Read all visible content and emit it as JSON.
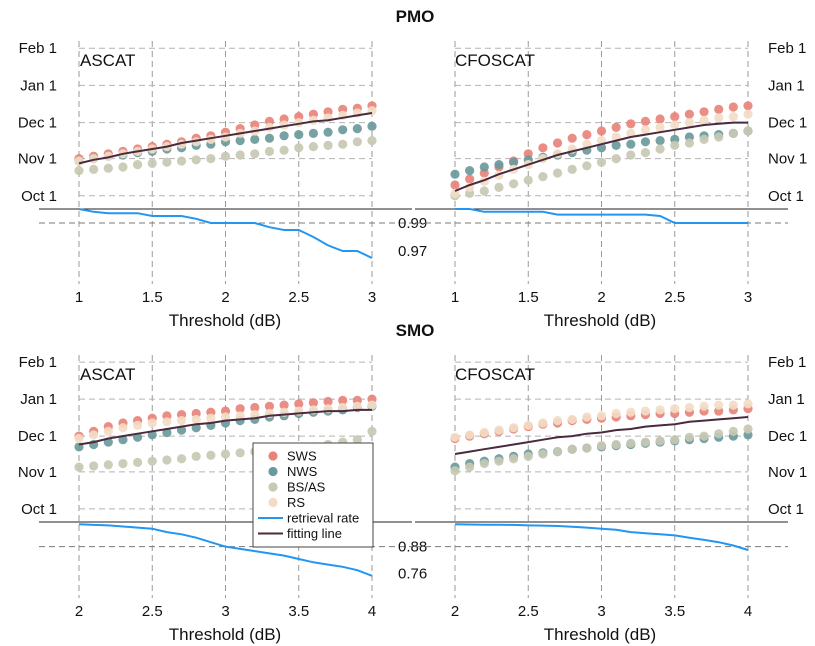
{
  "figure": {
    "sections": [
      {
        "title": "PMO",
        "panels": [
          {
            "name": "ASCAT",
            "xlabel": "Threshold (dB)",
            "x_ticks": [
              "1",
              "1.5",
              "2",
              "2.5",
              "3"
            ],
            "y_ticks": [
              "Oct 1",
              "Nov 1",
              "Dec 1",
              "Jan 1",
              "Feb 1"
            ],
            "rate_ticks": [
              "0.97",
              "0.99"
            ]
          },
          {
            "name": "CFOSCAT",
            "xlabel": "Threshold (dB)",
            "x_ticks": [
              "1",
              "1.5",
              "2",
              "2.5",
              "3"
            ],
            "y_ticks": [
              "Oct 1",
              "Nov 1",
              "Dec 1",
              "Jan 1",
              "Feb 1"
            ],
            "rate_ticks": [
              "0.97",
              "0.99"
            ]
          }
        ]
      },
      {
        "title": "SMO",
        "panels": [
          {
            "name": "ASCAT",
            "xlabel": "Threshold (dB)",
            "x_ticks": [
              "2",
              "2.5",
              "3",
              "3.5",
              "4"
            ],
            "y_ticks": [
              "Oct 1",
              "Nov 1",
              "Dec 1",
              "Jan 1",
              "Feb 1"
            ],
            "rate_ticks": [
              "0.76",
              "0.88"
            ]
          },
          {
            "name": "CFOSCAT",
            "xlabel": "Threshold (dB)",
            "x_ticks": [
              "2",
              "2.5",
              "3",
              "3.5",
              "4"
            ],
            "y_ticks": [
              "Oct 1",
              "Nov 1",
              "Dec 1",
              "Jan 1",
              "Feb 1"
            ],
            "rate_ticks": [
              "0.76",
              "0.88"
            ]
          }
        ]
      }
    ],
    "legend": [
      {
        "label": "SWS",
        "kind": "marker",
        "color": "#e8837a"
      },
      {
        "label": "NWS",
        "kind": "marker",
        "color": "#6a9a9c"
      },
      {
        "label": "BS/AS",
        "kind": "marker",
        "color": "#c7c9b3"
      },
      {
        "label": "RS",
        "kind": "marker",
        "color": "#f3dcc6"
      },
      {
        "label": "retrieval rate",
        "kind": "line",
        "color": "#2196f3"
      },
      {
        "label": "fitting line",
        "kind": "line",
        "color": "#4a2a3e"
      }
    ]
  },
  "chart_data": [
    {
      "type": "scatter",
      "section": "PMO",
      "panel": "ASCAT",
      "x_axis": "Threshold (dB)",
      "x": [
        1.0,
        1.1,
        1.2,
        1.3,
        1.4,
        1.5,
        1.6,
        1.7,
        1.8,
        1.9,
        2.0,
        2.1,
        2.2,
        2.3,
        2.4,
        2.5,
        2.6,
        2.7,
        2.8,
        2.9,
        3.0
      ],
      "y_unit": "date (month day)",
      "y_ticks": [
        "Oct 1",
        "Nov 1",
        "Dec 1",
        "Jan 1",
        "Feb 1"
      ],
      "ylim": [
        "Sep 20",
        "Feb 7"
      ],
      "series": [
        {
          "name": "SWS",
          "values": [
            "Nov 1",
            "Nov 3",
            "Nov 5",
            "Nov 7",
            "Nov 9",
            "Nov 11",
            "Nov 13",
            "Nov 15",
            "Nov 18",
            "Nov 20",
            "Nov 23",
            "Nov 26",
            "Nov 29",
            "Dec 2",
            "Dec 4",
            "Dec 6",
            "Dec 8",
            "Dec 10",
            "Dec 12",
            "Dec 13",
            "Dec 15"
          ]
        },
        {
          "name": "NWS",
          "values": [
            "Oct 30",
            "Nov 1",
            "Nov 3",
            "Nov 4",
            "Nov 6",
            "Nov 7",
            "Nov 9",
            "Nov 10",
            "Nov 12",
            "Nov 13",
            "Nov 15",
            "Nov 16",
            "Nov 17",
            "Nov 18",
            "Nov 20",
            "Nov 21",
            "Nov 22",
            "Nov 23",
            "Nov 25",
            "Nov 26",
            "Nov 28"
          ]
        },
        {
          "name": "BS/AS",
          "values": [
            "Oct 22",
            "Oct 23",
            "Oct 24",
            "Oct 25",
            "Oct 27",
            "Oct 28",
            "Oct 29",
            "Oct 30",
            "Oct 31",
            "Nov 1",
            "Nov 3",
            "Nov 4",
            "Nov 5",
            "Nov 7",
            "Nov 8",
            "Nov 10",
            "Nov 11",
            "Nov 12",
            "Nov 13",
            "Nov 15",
            "Nov 16"
          ]
        },
        {
          "name": "RS",
          "values": [
            "Oct 30",
            "Nov 1",
            "Nov 3",
            "Nov 5",
            "Nov 7",
            "Nov 9",
            "Nov 11",
            "Nov 13",
            "Nov 15",
            "Nov 17",
            "Nov 19",
            "Nov 22",
            "Nov 24",
            "Nov 27",
            "Nov 29",
            "Dec 1",
            "Dec 3",
            "Dec 5",
            "Dec 7",
            "Dec 9",
            "Dec 11"
          ]
        },
        {
          "name": "fitting line",
          "values": [
            "Oct 28",
            "Oct 31",
            "Nov 2",
            "Nov 5",
            "Nov 7",
            "Nov 9",
            "Nov 11",
            "Nov 14",
            "Nov 16",
            "Nov 18",
            "Nov 20",
            "Nov 22",
            "Nov 24",
            "Nov 26",
            "Nov 28",
            "Nov 30",
            "Dec 2",
            "Dec 3",
            "Dec 5",
            "Dec 7",
            "Dec 9"
          ]
        }
      ],
      "retrieval_rate": {
        "ylim": [
          0.955,
          1.0
        ],
        "y_ticks": [
          0.97,
          0.99
        ],
        "values": [
          1.0,
          0.998,
          0.997,
          0.997,
          0.997,
          0.995,
          0.995,
          0.995,
          0.993,
          0.99,
          0.99,
          0.99,
          0.99,
          0.987,
          0.985,
          0.985,
          0.98,
          0.974,
          0.97,
          0.97,
          0.965
        ]
      }
    },
    {
      "type": "scatter",
      "section": "PMO",
      "panel": "CFOSCAT",
      "x_axis": "Threshold (dB)",
      "x": [
        1.0,
        1.1,
        1.2,
        1.3,
        1.4,
        1.5,
        1.6,
        1.7,
        1.8,
        1.9,
        2.0,
        2.1,
        2.2,
        2.3,
        2.4,
        2.5,
        2.6,
        2.7,
        2.8,
        2.9,
        3.0
      ],
      "y_unit": "date (month day)",
      "y_ticks": [
        "Oct 1",
        "Nov 1",
        "Dec 1",
        "Jan 1",
        "Feb 1"
      ],
      "ylim": [
        "Sep 20",
        "Feb 7"
      ],
      "series": [
        {
          "name": "SWS",
          "values": [
            "Oct 10",
            "Oct 15",
            "Oct 20",
            "Oct 25",
            "Oct 30",
            "Nov 5",
            "Nov 10",
            "Nov 14",
            "Nov 18",
            "Nov 21",
            "Nov 24",
            "Nov 27",
            "Nov 30",
            "Dec 2",
            "Dec 4",
            "Dec 6",
            "Dec 8",
            "Dec 10",
            "Dec 12",
            "Dec 14",
            "Dec 15"
          ]
        },
        {
          "name": "NWS",
          "values": [
            "Oct 19",
            "Oct 22",
            "Oct 25",
            "Oct 27",
            "Oct 29",
            "Oct 31",
            "Nov 2",
            "Nov 4",
            "Nov 6",
            "Nov 8",
            "Nov 10",
            "Nov 12",
            "Nov 13",
            "Nov 15",
            "Nov 16",
            "Nov 17",
            "Nov 19",
            "Nov 20",
            "Nov 21",
            "Nov 22",
            "Nov 24"
          ]
        },
        {
          "name": "BS/AS",
          "values": [
            "Oct 1",
            "Oct 3",
            "Oct 5",
            "Oct 8",
            "Oct 11",
            "Oct 14",
            "Oct 17",
            "Oct 20",
            "Oct 23",
            "Oct 26",
            "Oct 29",
            "Nov 1",
            "Nov 4",
            "Nov 6",
            "Nov 9",
            "Nov 12",
            "Nov 14",
            "Nov 17",
            "Nov 19",
            "Nov 22",
            "Nov 24"
          ]
        },
        {
          "name": "RS",
          "values": [
            "Oct 3",
            "Oct 8",
            "Oct 13",
            "Oct 18",
            "Oct 23",
            "Oct 27",
            "Nov 1",
            "Nov 5",
            "Nov 9",
            "Nov 13",
            "Nov 16",
            "Nov 19",
            "Nov 22",
            "Nov 25",
            "Nov 27",
            "Nov 29",
            "Dec 1",
            "Dec 3",
            "Dec 5",
            "Dec 6",
            "Dec 8"
          ]
        },
        {
          "name": "fitting line",
          "values": [
            "Oct 5",
            "Oct 10",
            "Oct 14",
            "Oct 19",
            "Oct 23",
            "Oct 27",
            "Oct 31",
            "Nov 4",
            "Nov 7",
            "Nov 10",
            "Nov 13",
            "Nov 16",
            "Nov 19",
            "Nov 21",
            "Nov 23",
            "Nov 25",
            "Nov 27",
            "Nov 29",
            "Nov 30",
            "Dec 1",
            "Dec 1"
          ]
        }
      ],
      "retrieval_rate": {
        "ylim": [
          0.955,
          1.0
        ],
        "y_ticks": [
          0.97,
          0.99
        ],
        "values": [
          1.0,
          1.0,
          0.998,
          0.998,
          0.998,
          0.998,
          0.998,
          0.996,
          0.996,
          0.996,
          0.996,
          0.996,
          0.996,
          0.996,
          0.995,
          0.99,
          0.99,
          0.99,
          0.99,
          0.99,
          0.99
        ]
      }
    },
    {
      "type": "scatter",
      "section": "SMO",
      "panel": "ASCAT",
      "x_axis": "Threshold (dB)",
      "x": [
        2.0,
        2.1,
        2.2,
        2.3,
        2.4,
        2.5,
        2.6,
        2.7,
        2.8,
        2.9,
        3.0,
        3.1,
        3.2,
        3.3,
        3.4,
        3.5,
        3.6,
        3.7,
        3.8,
        3.9,
        4.0
      ],
      "y_unit": "date (month day)",
      "y_ticks": [
        "Oct 1",
        "Nov 1",
        "Dec 1",
        "Jan 1",
        "Feb 1"
      ],
      "ylim": [
        "Sep 20",
        "Feb 7"
      ],
      "series": [
        {
          "name": "SWS",
          "values": [
            "Dec 1",
            "Dec 5",
            "Dec 9",
            "Dec 12",
            "Dec 14",
            "Dec 16",
            "Dec 18",
            "Dec 19",
            "Dec 20",
            "Dec 21",
            "Dec 22",
            "Dec 24",
            "Dec 25",
            "Dec 26",
            "Dec 27",
            "Dec 28",
            "Dec 29",
            "Dec 30",
            "Dec 31",
            "Dec 31",
            "Jan 1"
          ]
        },
        {
          "name": "NWS",
          "values": [
            "Nov 22",
            "Nov 24",
            "Nov 26",
            "Nov 28",
            "Nov 30",
            "Dec 2",
            "Dec 4",
            "Dec 6",
            "Dec 8",
            "Dec 10",
            "Dec 12",
            "Dec 14",
            "Dec 15",
            "Dec 17",
            "Dec 18",
            "Dec 20",
            "Dec 21",
            "Dec 22",
            "Dec 23",
            "Dec 25",
            "Dec 26"
          ]
        },
        {
          "name": "BS/AS",
          "values": [
            "Nov 5",
            "Nov 6",
            "Nov 7",
            "Nov 8",
            "Nov 9",
            "Nov 10",
            "Nov 11",
            "Nov 12",
            "Nov 14",
            "Nov 15",
            "Nov 16",
            "Nov 17",
            "Nov 18",
            "Nov 19",
            "Nov 20",
            "Nov 21",
            "Nov 22",
            "Nov 24",
            "Nov 26",
            "Nov 28",
            "Dec 5"
          ]
        },
        {
          "name": "RS",
          "values": [
            "Nov 29",
            "Dec 2",
            "Dec 5",
            "Dec 8",
            "Dec 10",
            "Dec 12",
            "Dec 13",
            "Dec 14",
            "Dec 15",
            "Dec 16",
            "Dec 17",
            "Dec 18",
            "Dec 19",
            "Dec 20",
            "Dec 21",
            "Dec 22",
            "Dec 23",
            "Dec 24",
            "Dec 25",
            "Dec 26",
            "Dec 27"
          ]
        },
        {
          "name": "fitting line",
          "values": [
            "Nov 24",
            "Nov 26",
            "Nov 29",
            "Dec 1",
            "Dec 3",
            "Dec 5",
            "Dec 7",
            "Dec 9",
            "Dec 11",
            "Dec 12",
            "Dec 14",
            "Dec 15",
            "Dec 16",
            "Dec 18",
            "Dec 19",
            "Dec 20",
            "Dec 21",
            "Dec 22",
            "Dec 22",
            "Dec 23",
            "Dec 23"
          ]
        }
      ],
      "retrieval_rate": {
        "ylim": [
          0.7,
          0.99
        ],
        "y_ticks": [
          0.76,
          0.88
        ],
        "values": [
          0.98,
          0.977,
          0.975,
          0.97,
          0.965,
          0.96,
          0.945,
          0.935,
          0.92,
          0.9,
          0.88,
          0.87,
          0.86,
          0.85,
          0.84,
          0.825,
          0.81,
          0.8,
          0.79,
          0.775,
          0.75
        ]
      }
    },
    {
      "type": "scatter",
      "section": "SMO",
      "panel": "CFOSCAT",
      "x_axis": "Threshold (dB)",
      "x": [
        2.0,
        2.1,
        2.2,
        2.3,
        2.4,
        2.5,
        2.6,
        2.7,
        2.8,
        2.9,
        3.0,
        3.1,
        3.2,
        3.3,
        3.4,
        3.5,
        3.6,
        3.7,
        3.8,
        3.9,
        4.0
      ],
      "y_unit": "date (month day)",
      "y_ticks": [
        "Oct 1",
        "Nov 1",
        "Dec 1",
        "Jan 1",
        "Feb 1"
      ],
      "ylim": [
        "Sep 20",
        "Feb 7"
      ],
      "series": [
        {
          "name": "SWS",
          "values": [
            "Nov 29",
            "Dec 1",
            "Dec 3",
            "Dec 5",
            "Dec 7",
            "Dec 9",
            "Dec 11",
            "Dec 12",
            "Dec 14",
            "Dec 15",
            "Dec 16",
            "Dec 17",
            "Dec 18",
            "Dec 19",
            "Dec 20",
            "Dec 20",
            "Dec 21",
            "Dec 22",
            "Dec 22",
            "Dec 23",
            "Dec 24"
          ]
        },
        {
          "name": "NWS",
          "values": [
            "Nov 5",
            "Nov 8",
            "Nov 10",
            "Nov 12",
            "Nov 14",
            "Nov 16",
            "Nov 17",
            "Nov 18",
            "Nov 20",
            "Nov 21",
            "Nov 22",
            "Nov 23",
            "Nov 24",
            "Nov 25",
            "Nov 26",
            "Nov 27",
            "Nov 28",
            "Nov 29",
            "Nov 30",
            "Dec 1",
            "Dec 2"
          ]
        },
        {
          "name": "BS/AS",
          "values": [
            "Nov 2",
            "Nov 5",
            "Nov 8",
            "Nov 10",
            "Nov 12",
            "Nov 14",
            "Nov 16",
            "Nov 18",
            "Nov 20",
            "Nov 21",
            "Nov 23",
            "Nov 24",
            "Nov 25",
            "Nov 26",
            "Nov 27",
            "Nov 28",
            "Nov 30",
            "Dec 1",
            "Dec 3",
            "Dec 5",
            "Dec 7"
          ]
        },
        {
          "name": "RS",
          "values": [
            "Nov 30",
            "Dec 2",
            "Dec 4",
            "Dec 6",
            "Dec 8",
            "Dec 10",
            "Dec 12",
            "Dec 14",
            "Dec 15",
            "Dec 17",
            "Dec 18",
            "Dec 20",
            "Dec 21",
            "Dec 22",
            "Dec 23",
            "Dec 24",
            "Dec 25",
            "Dec 26",
            "Dec 27",
            "Dec 27",
            "Dec 28"
          ]
        },
        {
          "name": "fitting line",
          "values": [
            "Nov 16",
            "Nov 18",
            "Nov 20",
            "Nov 22",
            "Nov 24",
            "Nov 26",
            "Nov 28",
            "Nov 30",
            "Dec 1",
            "Dec 3",
            "Dec 4",
            "Dec 6",
            "Dec 7",
            "Dec 9",
            "Dec 10",
            "Dec 11",
            "Dec 13",
            "Dec 14",
            "Dec 15",
            "Dec 16",
            "Dec 17"
          ]
        }
      ],
      "retrieval_rate": {
        "ylim": [
          0.7,
          0.99
        ],
        "y_ticks": [
          0.76,
          0.88
        ],
        "values": [
          0.98,
          0.979,
          0.978,
          0.978,
          0.977,
          0.975,
          0.974,
          0.972,
          0.969,
          0.965,
          0.96,
          0.955,
          0.945,
          0.94,
          0.935,
          0.93,
          0.92,
          0.91,
          0.9,
          0.885,
          0.865
        ]
      }
    }
  ]
}
